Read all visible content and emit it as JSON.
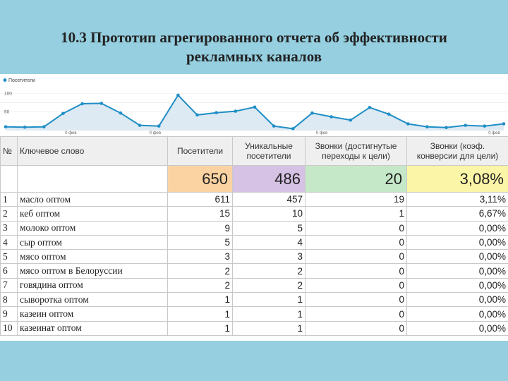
{
  "slide": {
    "title_line1": "10.3 Прототип агрегированного отчета об эффективности",
    "title_line2": "рекламных каналов"
  },
  "chart_data": {
    "type": "area",
    "legend": "Посетители",
    "legend_position": "top-left",
    "yticks": [
      "100",
      "50"
    ],
    "ylim": [
      0,
      110
    ],
    "xticks": [
      {
        "label": "0 фев",
        "index": 3.4
      },
      {
        "label": "0 фев",
        "index": 7.8
      },
      {
        "label": "0 фев",
        "index": 16.5
      },
      {
        "label": "0 фев",
        "index": 25.5
      }
    ],
    "series": [
      {
        "color": "#1f8ec6",
        "fill": "#dde9f3",
        "values": [
          10,
          9,
          10,
          46,
          72,
          73,
          47,
          14,
          12,
          95,
          42,
          48,
          52,
          63,
          12,
          5,
          47,
          37,
          28,
          62,
          44,
          18,
          10,
          8,
          14,
          12,
          18
        ]
      }
    ]
  },
  "table": {
    "headers": {
      "num": "№",
      "keyword": "Ключевое слово",
      "visitors": "Посетители",
      "unique": "Уникальные посетители",
      "calls": "Звонки (достигнутые переходы к цели)",
      "conversion": "Звонки (коэф. конверсии для цели)"
    },
    "totals": {
      "visitors": "650",
      "unique": "486",
      "calls": "20",
      "conversion": "3,08%"
    },
    "rows": [
      {
        "num": "1",
        "keyword": "масло оптом",
        "visitors": "611",
        "unique": "457",
        "calls": "19",
        "conversion": "3,11%"
      },
      {
        "num": "2",
        "keyword": "кеб оптом",
        "visitors": "15",
        "unique": "10",
        "calls": "1",
        "conversion": "6,67%"
      },
      {
        "num": "3",
        "keyword": "молоко оптом",
        "visitors": "9",
        "unique": "5",
        "calls": "0",
        "conversion": "0,00%"
      },
      {
        "num": "4",
        "keyword": "сыр оптом",
        "visitors": "5",
        "unique": "4",
        "calls": "0",
        "conversion": "0,00%"
      },
      {
        "num": "5",
        "keyword": "мясо оптом",
        "visitors": "3",
        "unique": "3",
        "calls": "0",
        "conversion": "0,00%"
      },
      {
        "num": "6",
        "keyword": "мясо оптом в Белоруссии",
        "visitors": "2",
        "unique": "2",
        "calls": "0",
        "conversion": "0,00%"
      },
      {
        "num": "7",
        "keyword": "говядина оптом",
        "visitors": "2",
        "unique": "2",
        "calls": "0",
        "conversion": "0,00%"
      },
      {
        "num": "8",
        "keyword": "сыворотка оптом",
        "visitors": "1",
        "unique": "1",
        "calls": "0",
        "conversion": "0,00%"
      },
      {
        "num": "9",
        "keyword": "казеин оптом",
        "visitors": "1",
        "unique": "1",
        "calls": "0",
        "conversion": "0,00%"
      },
      {
        "num": "10",
        "keyword": "казеинат оптом",
        "visitors": "1",
        "unique": "1",
        "calls": "0",
        "conversion": "0,00%"
      }
    ]
  }
}
